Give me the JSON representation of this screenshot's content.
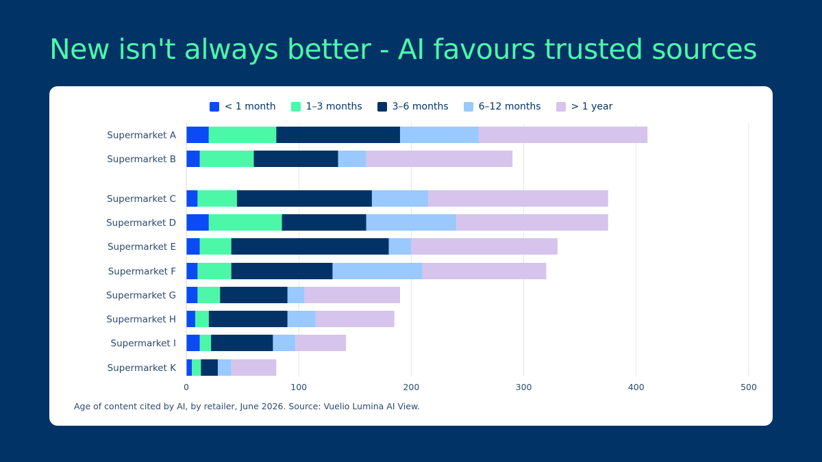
{
  "title": "New isn't always better - AI favours trusted sources",
  "caption": "Age of content cited by AI, by retailer, June 2026. Source: Vuelio Lumina AI View.",
  "chart_data": {
    "type": "bar",
    "orientation": "horizontal",
    "stacked": true,
    "categories": [
      "Supermarket  A",
      "Supermarket  B",
      "Supermarket  C",
      "Supermarket  D",
      "Supermarket  E",
      "Supermarket  F",
      "Supermarket  G",
      "Supermarket  H",
      "Supermarket  I",
      "Supermarket  K"
    ],
    "series": [
      {
        "name": "< 1 month",
        "color": "#0B4BF5",
        "values": [
          20,
          12,
          10,
          20,
          12,
          10,
          10,
          8,
          12,
          5
        ]
      },
      {
        "name": "1–3 months",
        "color": "#4DF7A8",
        "values": [
          60,
          48,
          35,
          65,
          28,
          30,
          20,
          12,
          10,
          8
        ]
      },
      {
        "name": "3–6 months",
        "color": "#023366",
        "values": [
          110,
          75,
          120,
          75,
          140,
          90,
          60,
          70,
          55,
          15
        ]
      },
      {
        "name": "6–12 months",
        "color": "#99C9FF",
        "values": [
          70,
          25,
          50,
          80,
          20,
          80,
          15,
          25,
          20,
          12
        ]
      },
      {
        "name": "> 1 year",
        "color": "#D6C4EC",
        "values": [
          150,
          130,
          160,
          135,
          130,
          110,
          85,
          70,
          45,
          40
        ]
      }
    ],
    "xlim": [
      0,
      500
    ],
    "xticks": [
      "0",
      "100",
      "200",
      "300",
      "400",
      "500"
    ],
    "grid": "vertical",
    "legend": "top-center"
  }
}
